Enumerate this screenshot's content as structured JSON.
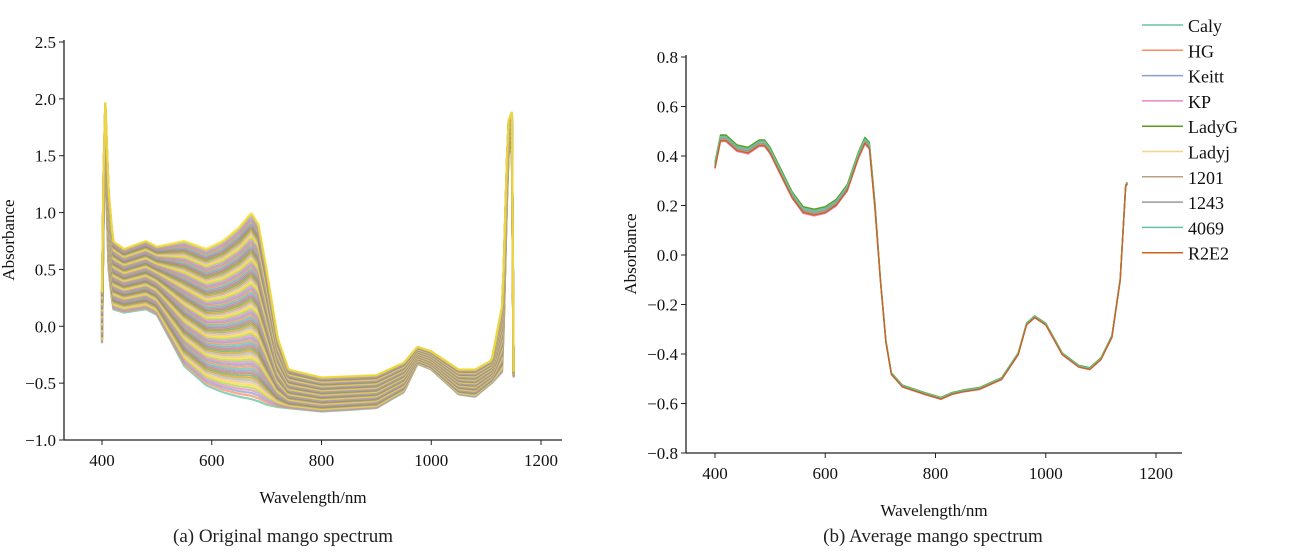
{
  "chart_data": [
    {
      "type": "line",
      "caption": "(a) Original mango spectrum",
      "xlabel": "Wavelength/nm",
      "ylabel": "Absorbance",
      "xlim": [
        350,
        1240
      ],
      "ylim": [
        -1.0,
        2.5
      ],
      "xticks": [
        400,
        600,
        800,
        1000,
        1200
      ],
      "yticks": [
        -1.0,
        -0.5,
        0.0,
        0.5,
        1.0,
        1.5,
        2.0,
        2.5
      ],
      "ytick_labels": [
        "−1.0",
        "−0.5",
        "0.0",
        "0.5",
        "1.0",
        "1.5",
        "2.0",
        "2.5"
      ],
      "note": "hundreds of overlapping sample spectra; envelope given",
      "series": [
        {
          "name": "upper envelope",
          "x": [
            400,
            405,
            412,
            420,
            440,
            480,
            500,
            550,
            590,
            620,
            650,
            672,
            685,
            700,
            720,
            740,
            800,
            900,
            950,
            975,
            1000,
            1050,
            1080,
            1110,
            1130,
            1140,
            1148,
            1150
          ],
          "y": [
            0.3,
            2.1,
            1.2,
            0.75,
            0.68,
            0.75,
            0.7,
            0.75,
            0.68,
            0.75,
            0.87,
            1.0,
            0.9,
            0.5,
            -0.1,
            -0.38,
            -0.45,
            -0.43,
            -0.32,
            -0.18,
            -0.22,
            -0.38,
            -0.38,
            -0.3,
            0.2,
            1.8,
            1.9,
            -0.4
          ]
        },
        {
          "name": "lower envelope",
          "x": [
            400,
            405,
            412,
            420,
            440,
            480,
            500,
            550,
            590,
            620,
            650,
            672,
            685,
            700,
            720,
            740,
            800,
            900,
            950,
            975,
            1000,
            1050,
            1080,
            1110,
            1130,
            1140,
            1148,
            1150
          ],
          "y": [
            -0.15,
            1.7,
            0.5,
            0.15,
            0.12,
            0.15,
            0.1,
            -0.35,
            -0.52,
            -0.58,
            -0.62,
            -0.64,
            -0.66,
            -0.69,
            -0.71,
            -0.72,
            -0.75,
            -0.72,
            -0.58,
            -0.33,
            -0.38,
            -0.6,
            -0.62,
            -0.5,
            -0.4,
            1.5,
            1.6,
            -0.45
          ]
        }
      ]
    },
    {
      "type": "line",
      "caption": "(b) Average mango spectrum",
      "xlabel": "Wavelength/nm",
      "ylabel": "Absorbance",
      "xlim": [
        350,
        1250
      ],
      "ylim": [
        -0.8,
        0.8
      ],
      "xticks": [
        400,
        600,
        800,
        1000,
        1200
      ],
      "yticks": [
        -0.8,
        -0.6,
        -0.4,
        -0.2,
        0.0,
        0.2,
        0.4,
        0.6,
        0.8
      ],
      "ytick_labels": [
        "−0.8",
        "−0.6",
        "−0.4",
        "−0.2",
        "0.0",
        "0.2",
        "0.4",
        "0.6",
        "0.8"
      ],
      "x": [
        400,
        410,
        420,
        440,
        460,
        480,
        490,
        500,
        520,
        540,
        560,
        580,
        600,
        620,
        640,
        660,
        672,
        680,
        690,
        700,
        710,
        720,
        740,
        780,
        810,
        830,
        850,
        880,
        920,
        950,
        965,
        980,
        1000,
        1030,
        1060,
        1080,
        1100,
        1120,
        1135,
        1145,
        1148
      ],
      "y": [
        0.36,
        0.47,
        0.47,
        0.43,
        0.42,
        0.45,
        0.45,
        0.42,
        0.33,
        0.24,
        0.18,
        0.17,
        0.18,
        0.21,
        0.27,
        0.4,
        0.46,
        0.44,
        0.2,
        -0.1,
        -0.35,
        -0.48,
        -0.53,
        -0.56,
        -0.58,
        -0.56,
        -0.55,
        -0.54,
        -0.5,
        -0.4,
        -0.28,
        -0.25,
        -0.28,
        -0.4,
        -0.45,
        -0.46,
        -0.42,
        -0.33,
        -0.1,
        0.28,
        0.29
      ],
      "series": [
        {
          "name": "Caly",
          "color": "#66c2a5",
          "offset": 0.01
        },
        {
          "name": "HG",
          "color": "#fc8d62",
          "offset": -0.005
        },
        {
          "name": "Keitt",
          "color": "#8da0cb",
          "offset": 0.0
        },
        {
          "name": "KP",
          "color": "#e78ac3",
          "offset": -0.012
        },
        {
          "name": "LadyG",
          "color": "#5a9e1c",
          "offset": 0.015
        },
        {
          "name": "Ladyj",
          "color": "#f5d28f",
          "offset": 0.005
        },
        {
          "name": "1201",
          "color": "#b59f86",
          "offset": -0.003
        },
        {
          "name": "1243",
          "color": "#9a9a9a",
          "offset": 0.002
        },
        {
          "name": "4069",
          "color": "#66c2a5",
          "offset": 0.008
        },
        {
          "name": "R2E2",
          "color": "#c8641e",
          "offset": -0.008
        }
      ],
      "legend": "top-right"
    }
  ]
}
